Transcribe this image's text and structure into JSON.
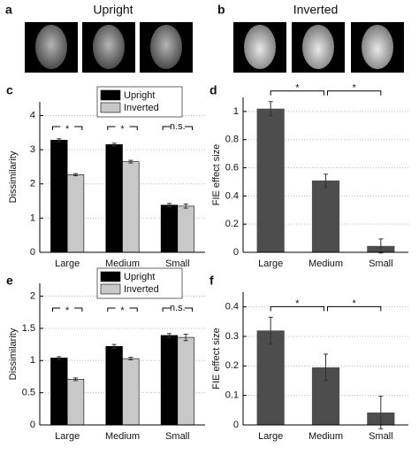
{
  "images": [
    {
      "label": "a",
      "title": "Upright"
    },
    {
      "label": "b",
      "title": "Inverted"
    }
  ],
  "chart_data": [
    {
      "type": "bar",
      "label": "c",
      "ylabel": "Dissimilarity",
      "categories": [
        "Large",
        "Medium",
        "Small"
      ],
      "series": [
        {
          "name": "Upright",
          "color": "#000000",
          "values": [
            3.28,
            3.15,
            1.38
          ],
          "errors": [
            0.04,
            0.04,
            0.05
          ]
        },
        {
          "name": "Inverted",
          "color": "#c8c8c8",
          "values": [
            2.27,
            2.65,
            1.35
          ],
          "errors": [
            0.03,
            0.04,
            0.06
          ]
        }
      ],
      "ylim": [
        0,
        4.4
      ],
      "yticks": [
        0,
        1,
        2,
        3,
        4
      ],
      "grid": true,
      "annotations": [
        "*",
        "*",
        "n.s."
      ]
    },
    {
      "type": "bar",
      "label": "d",
      "ylabel": "FIE effect size",
      "categories": [
        "Large",
        "Medium",
        "Small"
      ],
      "values": [
        1.02,
        0.51,
        0.045
      ],
      "errors": [
        0.05,
        0.045,
        0.05
      ],
      "color": "#4d4d4d",
      "ylim": [
        0,
        1.1
      ],
      "yticks": [
        0,
        0.2,
        0.4,
        0.6,
        0.8,
        1
      ],
      "grid": true,
      "annotations": [
        "*",
        "*"
      ]
    },
    {
      "type": "bar",
      "label": "e",
      "ylabel": "Dissimilarity",
      "categories": [
        "Large",
        "Medium",
        "Small"
      ],
      "series": [
        {
          "name": "Upright",
          "color": "#000000",
          "values": [
            1.04,
            1.22,
            1.39
          ],
          "errors": [
            0.02,
            0.03,
            0.03
          ]
        },
        {
          "name": "Inverted",
          "color": "#c8c8c8",
          "values": [
            0.71,
            1.03,
            1.36
          ],
          "errors": [
            0.02,
            0.02,
            0.05
          ]
        }
      ],
      "ylim": [
        0,
        2.2
      ],
      "yticks": [
        0,
        0.5,
        1,
        1.5,
        2
      ],
      "grid": true,
      "annotations": [
        "*",
        "*",
        "n.s."
      ]
    },
    {
      "type": "bar",
      "label": "f",
      "ylabel": "FIE effect size",
      "categories": [
        "Large",
        "Medium",
        "Small"
      ],
      "values": [
        0.32,
        0.195,
        0.042
      ],
      "errors": [
        0.045,
        0.045,
        0.055
      ],
      "color": "#4d4d4d",
      "ylim": [
        0,
        0.45
      ],
      "yticks": [
        0,
        0.1,
        0.2,
        0.3,
        0.4
      ],
      "grid": true,
      "annotations": [
        "*",
        "*"
      ]
    }
  ]
}
